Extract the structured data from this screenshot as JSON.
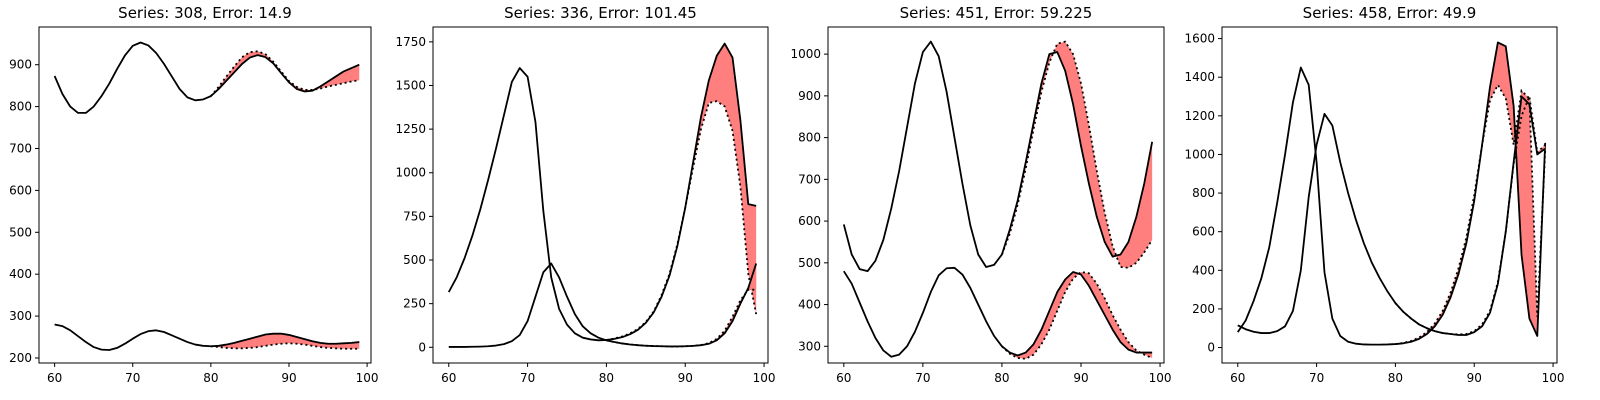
{
  "chart_data": [
    {
      "type": "line",
      "title": "Series: 308, Error: 14.9",
      "xlim": [
        58,
        100.5
      ],
      "ylim": [
        188,
        990
      ],
      "xticks": [
        60,
        70,
        80,
        90,
        100
      ],
      "yticks": [
        200,
        300,
        400,
        500,
        600,
        700,
        800,
        900
      ],
      "band_color": "#ff7f7f",
      "line_color": "#000000",
      "forecast_start": 80,
      "series": [
        {
          "x": [
            60,
            61,
            62,
            63,
            64,
            65,
            66,
            67,
            68,
            69,
            70,
            71,
            72,
            73,
            74,
            75,
            76,
            77,
            78,
            79,
            80,
            81,
            82,
            83,
            84,
            85,
            86,
            87,
            88,
            89,
            90,
            91,
            92,
            93,
            94,
            95,
            96,
            97,
            98,
            99
          ],
          "actual": [
            873,
            830,
            800,
            785,
            785,
            800,
            825,
            855,
            890,
            922,
            945,
            953,
            946,
            928,
            902,
            872,
            842,
            822,
            815,
            817,
            825,
            842,
            862,
            882,
            902,
            917,
            923,
            918,
            903,
            880,
            858,
            842,
            836,
            838,
            848,
            860,
            872,
            884,
            892,
            900
          ],
          "forecast": [
            null,
            null,
            null,
            null,
            null,
            null,
            null,
            null,
            null,
            null,
            null,
            null,
            null,
            null,
            null,
            null,
            null,
            null,
            null,
            null,
            825,
            847,
            872,
            896,
            918,
            930,
            932,
            925,
            907,
            884,
            861,
            847,
            840,
            840,
            843,
            848,
            852,
            856,
            860,
            863
          ]
        },
        {
          "x": [
            60,
            61,
            62,
            63,
            64,
            65,
            66,
            67,
            68,
            69,
            70,
            71,
            72,
            73,
            74,
            75,
            76,
            77,
            78,
            79,
            80,
            81,
            82,
            83,
            84,
            85,
            86,
            87,
            88,
            89,
            90,
            91,
            92,
            93,
            94,
            95,
            96,
            97,
            98,
            99
          ],
          "actual": [
            280,
            276,
            266,
            252,
            238,
            226,
            220,
            219,
            224,
            234,
            246,
            257,
            264,
            266,
            262,
            254,
            246,
            238,
            232,
            229,
            228,
            229,
            232,
            236,
            241,
            246,
            251,
            256,
            258,
            258,
            255,
            250,
            245,
            240,
            236,
            234,
            234,
            235,
            236,
            238
          ],
          "forecast": [
            null,
            null,
            null,
            null,
            null,
            null,
            null,
            null,
            null,
            null,
            null,
            null,
            null,
            null,
            null,
            null,
            null,
            null,
            null,
            null,
            228,
            226,
            224,
            223,
            223,
            224,
            226,
            229,
            232,
            234,
            235,
            234,
            232,
            229,
            226,
            224,
            223,
            222,
            222,
            222
          ]
        }
      ]
    },
    {
      "type": "line",
      "title": "Series: 336, Error: 101.45",
      "xlim": [
        58,
        100.5
      ],
      "ylim": [
        -90,
        1835
      ],
      "xticks": [
        60,
        70,
        80,
        90,
        100
      ],
      "yticks": [
        0,
        250,
        500,
        750,
        1000,
        1250,
        1500,
        1750
      ],
      "band_color": "#ff7f7f",
      "line_color": "#000000",
      "forecast_start": 80,
      "series": [
        {
          "x": [
            60,
            61,
            62,
            63,
            64,
            65,
            66,
            67,
            68,
            69,
            70,
            71,
            72,
            73,
            74,
            75,
            76,
            77,
            78,
            79,
            80,
            81,
            82,
            83,
            84,
            85,
            86,
            87,
            88,
            89,
            90,
            91,
            92,
            93,
            94,
            95,
            96,
            97,
            98,
            99
          ],
          "actual": [
            316,
            400,
            510,
            640,
            790,
            960,
            1140,
            1330,
            1520,
            1600,
            1550,
            1290,
            780,
            400,
            220,
            130,
            80,
            55,
            45,
            40,
            42,
            48,
            58,
            75,
            100,
            140,
            200,
            290,
            410,
            580,
            800,
            1060,
            1320,
            1530,
            1670,
            1740,
            1660,
            1300,
            820,
            810
          ],
          "forecast": [
            null,
            null,
            null,
            null,
            null,
            null,
            null,
            null,
            null,
            null,
            null,
            null,
            null,
            null,
            null,
            null,
            null,
            null,
            null,
            null,
            42,
            50,
            62,
            80,
            105,
            145,
            205,
            300,
            420,
            590,
            800,
            1030,
            1250,
            1400,
            1410,
            1380,
            1240,
            920,
            420,
            190
          ]
        },
        {
          "x": [
            60,
            61,
            62,
            63,
            64,
            65,
            66,
            67,
            68,
            69,
            70,
            71,
            72,
            73,
            74,
            75,
            76,
            77,
            78,
            79,
            80,
            81,
            82,
            83,
            84,
            85,
            86,
            87,
            88,
            89,
            90,
            91,
            92,
            93,
            94,
            95,
            96,
            97,
            98,
            99
          ],
          "actual": [
            2,
            2,
            2,
            3,
            4,
            6,
            10,
            18,
            35,
            70,
            150,
            290,
            430,
            480,
            400,
            290,
            190,
            120,
            80,
            55,
            40,
            30,
            22,
            16,
            12,
            9,
            7,
            6,
            5,
            5,
            6,
            8,
            12,
            20,
            40,
            80,
            150,
            250,
            340,
            480
          ],
          "forecast": [
            null,
            null,
            null,
            null,
            null,
            null,
            null,
            null,
            null,
            null,
            null,
            null,
            null,
            null,
            null,
            null,
            null,
            null,
            null,
            null,
            40,
            30,
            22,
            16,
            12,
            9,
            7,
            6,
            5,
            5,
            6,
            8,
            13,
            24,
            48,
            95,
            175,
            270,
            330,
            330
          ]
        }
      ]
    },
    {
      "type": "line",
      "title": "Series: 451, Error: 59.225",
      "xlim": [
        58,
        100.5
      ],
      "ylim": [
        260,
        1065
      ],
      "xticks": [
        60,
        70,
        80,
        90,
        100
      ],
      "yticks": [
        300,
        400,
        500,
        600,
        700,
        800,
        900,
        1000
      ],
      "band_color": "#ff7f7f",
      "line_color": "#000000",
      "forecast_start": 80,
      "series": [
        {
          "x": [
            60,
            61,
            62,
            63,
            64,
            65,
            66,
            67,
            68,
            69,
            70,
            71,
            72,
            73,
            74,
            75,
            76,
            77,
            78,
            79,
            80,
            81,
            82,
            83,
            84,
            85,
            86,
            87,
            88,
            89,
            90,
            91,
            92,
            93,
            94,
            95,
            96,
            97,
            98,
            99
          ],
          "actual": [
            592,
            520,
            485,
            480,
            505,
            555,
            630,
            720,
            825,
            930,
            1005,
            1030,
            995,
            910,
            800,
            690,
            590,
            520,
            490,
            495,
            520,
            580,
            650,
            740,
            835,
            930,
            1000,
            1005,
            960,
            880,
            780,
            690,
            610,
            550,
            515,
            520,
            550,
            610,
            690,
            790
          ],
          "forecast": [
            null,
            null,
            null,
            null,
            null,
            null,
            null,
            null,
            null,
            null,
            null,
            null,
            null,
            null,
            null,
            null,
            null,
            null,
            null,
            null,
            520,
            570,
            640,
            725,
            820,
            910,
            980,
            1025,
            1030,
            1000,
            930,
            830,
            720,
            620,
            540,
            490,
            488,
            500,
            525,
            555
          ]
        },
        {
          "x": [
            60,
            61,
            62,
            63,
            64,
            65,
            66,
            67,
            68,
            69,
            70,
            71,
            72,
            73,
            74,
            75,
            76,
            77,
            78,
            79,
            80,
            81,
            82,
            83,
            84,
            85,
            86,
            87,
            88,
            89,
            90,
            91,
            92,
            93,
            94,
            95,
            96,
            97,
            98,
            99
          ],
          "actual": [
            480,
            450,
            405,
            360,
            320,
            290,
            275,
            280,
            300,
            335,
            380,
            430,
            470,
            487,
            488,
            472,
            440,
            400,
            360,
            325,
            300,
            285,
            278,
            285,
            305,
            340,
            385,
            430,
            460,
            478,
            472,
            445,
            410,
            375,
            340,
            310,
            292,
            285,
            285,
            285
          ],
          "forecast": [
            null,
            null,
            null,
            null,
            null,
            null,
            null,
            null,
            null,
            null,
            null,
            null,
            null,
            null,
            null,
            null,
            null,
            null,
            null,
            null,
            300,
            282,
            272,
            270,
            280,
            305,
            340,
            385,
            430,
            462,
            478,
            475,
            450,
            415,
            375,
            340,
            310,
            290,
            280,
            272
          ]
        }
      ]
    },
    {
      "type": "line",
      "title": "Series: 458, Error: 49.9",
      "xlim": [
        58,
        100.5
      ],
      "ylim": [
        -80,
        1660
      ],
      "xticks": [
        60,
        70,
        80,
        90,
        100
      ],
      "yticks": [
        0,
        200,
        400,
        600,
        800,
        1000,
        1200,
        1400,
        1600
      ],
      "band_color": "#ff7f7f",
      "line_color": "#000000",
      "forecast_start": 80,
      "series": [
        {
          "x": [
            60,
            61,
            62,
            63,
            64,
            65,
            66,
            67,
            68,
            69,
            70,
            71,
            72,
            73,
            74,
            75,
            76,
            77,
            78,
            79,
            80,
            81,
            82,
            83,
            84,
            85,
            86,
            87,
            88,
            89,
            90,
            91,
            92,
            93,
            94,
            95,
            96,
            97,
            98,
            99
          ],
          "actual": [
            80,
            140,
            240,
            360,
            520,
            750,
            1000,
            1270,
            1450,
            1360,
            960,
            390,
            150,
            60,
            30,
            20,
            16,
            15,
            15,
            16,
            18,
            22,
            30,
            45,
            70,
            110,
            170,
            260,
            380,
            540,
            760,
            1050,
            1350,
            1580,
            1560,
            1250,
            480,
            150,
            60,
            1060
          ],
          "forecast": [
            null,
            null,
            null,
            null,
            null,
            null,
            null,
            null,
            null,
            null,
            null,
            null,
            null,
            null,
            null,
            null,
            null,
            null,
            null,
            null,
            18,
            24,
            34,
            52,
            80,
            125,
            190,
            285,
            410,
            570,
            790,
            1050,
            1280,
            1360,
            1290,
            1050,
            1330,
            1290,
            160,
            1020
          ]
        },
        {
          "x": [
            60,
            61,
            62,
            63,
            64,
            65,
            66,
            67,
            68,
            69,
            70,
            71,
            72,
            73,
            74,
            75,
            76,
            77,
            78,
            79,
            80,
            81,
            82,
            83,
            84,
            85,
            86,
            87,
            88,
            89,
            90,
            91,
            92,
            93,
            94,
            95,
            96,
            97,
            98,
            99
          ],
          "actual": [
            115,
            95,
            82,
            75,
            75,
            85,
            110,
            190,
            400,
            780,
            1050,
            1210,
            1150,
            960,
            800,
            660,
            540,
            440,
            360,
            290,
            230,
            185,
            150,
            120,
            100,
            85,
            75,
            70,
            65,
            65,
            80,
            110,
            180,
            330,
            600,
            960,
            1300,
            1260,
            1000,
            1030
          ],
          "forecast": [
            null,
            null,
            null,
            null,
            null,
            null,
            null,
            null,
            null,
            null,
            null,
            null,
            null,
            null,
            null,
            null,
            null,
            null,
            null,
            null,
            230,
            185,
            150,
            120,
            100,
            85,
            75,
            70,
            68,
            70,
            85,
            120,
            190,
            340,
            600,
            950,
            1200,
            1300,
            1010,
            1050
          ]
        }
      ]
    }
  ]
}
